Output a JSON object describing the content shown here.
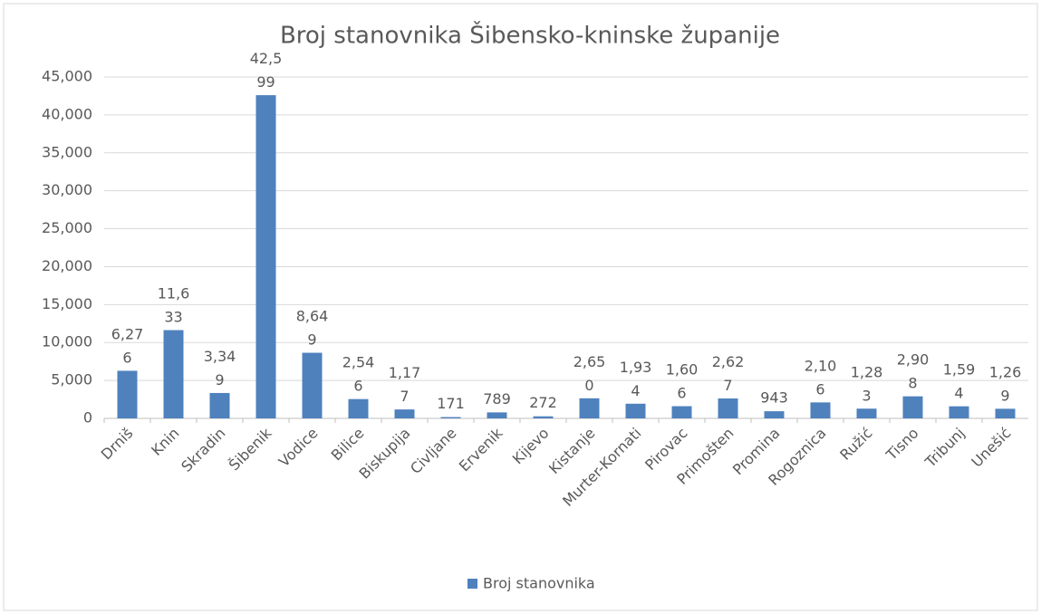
{
  "chart_data": {
    "type": "bar",
    "title": "Broj stanovnika Šibensko-kninske županije",
    "categories": [
      "Drniš",
      "Knin",
      "Skradin",
      "Šibenik",
      "Vodice",
      "Bilice",
      "Biskupija",
      "Civljane",
      "Ervenik",
      "Kijevo",
      "Kistanje",
      "Murter-Kornati",
      "Pirovac",
      "Primošten",
      "Promina",
      "Rogoznica",
      "Ružić",
      "Tisno",
      "Tribunj",
      "Unešić"
    ],
    "series": [
      {
        "name": "Broj stanovnika",
        "color": "#4f81bd",
        "values": [
          6276,
          11633,
          3349,
          42599,
          8649,
          2546,
          1177,
          171,
          789,
          272,
          2650,
          1934,
          1606,
          2627,
          943,
          2106,
          1283,
          2908,
          1594,
          1269
        ],
        "value_labels": [
          "6,276",
          "11,633",
          "3,349",
          "42,599",
          "8,649",
          "2,546",
          "1,177",
          "171",
          "789",
          "272",
          "2,650",
          "1,934",
          "1,606",
          "2,627",
          "943",
          "2,106",
          "1,283",
          "2,908",
          "1,594",
          "1,269"
        ]
      }
    ],
    "ylim": [
      0,
      45000
    ],
    "yticks": [
      0,
      {
        "value": 5000,
        "label": "5,000"
      },
      {
        "value": 10000,
        "label": "10,000"
      },
      {
        "value": 15000,
        "label": "15,000"
      },
      {
        "value": 20000,
        "label": "20,000"
      },
      {
        "value": 25000,
        "label": "25,000"
      },
      {
        "value": 30000,
        "label": "30,000"
      },
      {
        "value": 35000,
        "label": "35,000"
      },
      {
        "value": 40000,
        "label": "40,000"
      },
      {
        "value": 45000,
        "label": "45,000"
      }
    ],
    "grid": true,
    "legend": "bottom"
  }
}
